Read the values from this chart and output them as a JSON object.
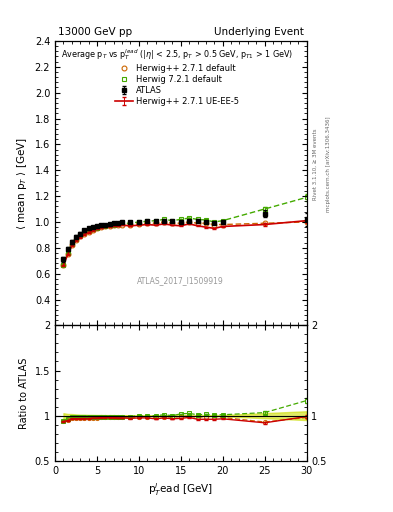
{
  "title_left": "13000 GeV pp",
  "title_right": "Underlying Event",
  "annotation": "ATLAS_2017_I1509919",
  "right_label_top": "Rivet 3.1.10, ≥ 3M events",
  "right_label_bottom": "mcplots.cern.ch [arXiv:1306.3436]",
  "ylabel_main": "⟨ mean p$_{T}$ ⟩ [GeV]",
  "ylabel_ratio": "Ratio to ATLAS",
  "xlabel": "p$_{T}^{l}$ead [GeV]",
  "xlim": [
    0,
    30
  ],
  "ylim_main": [
    0.2,
    2.4
  ],
  "ylim_ratio": [
    0.5,
    2.0
  ],
  "legend_title": "Average p$_{T}$ vs p$_{T}^{lead}$ (|$\\eta$| < 2.5, p$_{T}$ > 0.5 GeV, p$_{T1}$ > 1 GeV)",
  "atlas_x": [
    1.0,
    1.5,
    2.0,
    2.5,
    3.0,
    3.5,
    4.0,
    4.5,
    5.0,
    5.5,
    6.0,
    6.5,
    7.0,
    7.5,
    8.0,
    9.0,
    10.0,
    11.0,
    12.0,
    13.0,
    14.0,
    15.0,
    16.0,
    17.0,
    18.0,
    19.0,
    20.0,
    25.0,
    30.0
  ],
  "atlas_y": [
    0.71,
    0.79,
    0.845,
    0.885,
    0.91,
    0.935,
    0.95,
    0.96,
    0.97,
    0.975,
    0.98,
    0.985,
    0.99,
    0.995,
    1.0,
    1.0,
    1.0,
    1.005,
    1.01,
    1.01,
    1.01,
    1.0,
    1.005,
    1.01,
    1.0,
    0.99,
    1.0,
    1.065,
    1.02
  ],
  "atlas_yerr": [
    0.02,
    0.015,
    0.015,
    0.012,
    0.01,
    0.01,
    0.008,
    0.008,
    0.007,
    0.007,
    0.006,
    0.006,
    0.006,
    0.005,
    0.005,
    0.005,
    0.005,
    0.005,
    0.005,
    0.005,
    0.005,
    0.005,
    0.005,
    0.005,
    0.006,
    0.006,
    0.007,
    0.03,
    0.05
  ],
  "herwig271_x": [
    1.0,
    1.5,
    2.0,
    2.5,
    3.0,
    3.5,
    4.0,
    4.5,
    5.0,
    5.5,
    6.0,
    6.5,
    7.0,
    7.5,
    8.0,
    9.0,
    10.0,
    11.0,
    12.0,
    13.0,
    14.0,
    15.0,
    16.0,
    17.0,
    18.0,
    19.0,
    20.0,
    25.0,
    30.0
  ],
  "herwig271_y": [
    0.67,
    0.755,
    0.82,
    0.86,
    0.89,
    0.91,
    0.925,
    0.94,
    0.95,
    0.96,
    0.965,
    0.97,
    0.975,
    0.975,
    0.98,
    0.98,
    0.985,
    0.99,
    0.99,
    1.0,
    0.99,
    0.99,
    1.0,
    0.99,
    0.99,
    0.98,
    0.98,
    0.99,
    1.0
  ],
  "herwig271ueee5_x": [
    1.0,
    1.5,
    2.0,
    2.5,
    3.0,
    3.5,
    4.0,
    4.5,
    5.0,
    5.5,
    6.0,
    6.5,
    7.0,
    7.5,
    8.0,
    9.0,
    10.0,
    11.0,
    12.0,
    13.0,
    14.0,
    15.0,
    16.0,
    17.0,
    18.0,
    19.0,
    20.0,
    25.0,
    30.0
  ],
  "herwig271ueee5_y": [
    0.665,
    0.745,
    0.815,
    0.855,
    0.88,
    0.905,
    0.92,
    0.935,
    0.945,
    0.955,
    0.96,
    0.965,
    0.97,
    0.97,
    0.975,
    0.97,
    0.975,
    0.98,
    0.975,
    0.985,
    0.975,
    0.97,
    0.985,
    0.97,
    0.96,
    0.95,
    0.965,
    0.98,
    1.01
  ],
  "herwig271ueee5_yerr": [
    0.005,
    0.004,
    0.004,
    0.003,
    0.003,
    0.003,
    0.003,
    0.002,
    0.002,
    0.002,
    0.002,
    0.002,
    0.002,
    0.002,
    0.002,
    0.002,
    0.002,
    0.002,
    0.002,
    0.002,
    0.002,
    0.003,
    0.003,
    0.003,
    0.004,
    0.005,
    0.005,
    0.01,
    0.02
  ],
  "herwig721_x": [
    1.0,
    1.5,
    2.0,
    2.5,
    3.0,
    3.5,
    4.0,
    4.5,
    5.0,
    5.5,
    6.0,
    6.5,
    7.0,
    7.5,
    8.0,
    9.0,
    10.0,
    11.0,
    12.0,
    13.0,
    14.0,
    15.0,
    16.0,
    17.0,
    18.0,
    19.0,
    20.0,
    25.0,
    30.0
  ],
  "herwig721_y": [
    0.67,
    0.76,
    0.83,
    0.87,
    0.9,
    0.92,
    0.935,
    0.945,
    0.955,
    0.965,
    0.97,
    0.975,
    0.98,
    0.985,
    0.99,
    0.99,
    1.0,
    1.005,
    1.01,
    1.02,
    1.01,
    1.02,
    1.03,
    1.02,
    1.015,
    1.0,
    1.01,
    1.1,
    1.19
  ],
  "herwig721_yerr": [
    0.005,
    0.004,
    0.004,
    0.003,
    0.003,
    0.003,
    0.003,
    0.002,
    0.002,
    0.002,
    0.002,
    0.002,
    0.002,
    0.002,
    0.002,
    0.002,
    0.002,
    0.002,
    0.002,
    0.002,
    0.002,
    0.003,
    0.003,
    0.003,
    0.004,
    0.005,
    0.006,
    0.015,
    0.03
  ],
  "color_atlas": "#000000",
  "color_herwig271": "#cc6600",
  "color_herwig271ueee5": "#cc0000",
  "color_herwig721": "#44aa00",
  "ratio_herwig271_y": [
    0.944,
    0.956,
    0.97,
    0.972,
    0.978,
    0.973,
    0.974,
    0.979,
    0.979,
    0.985,
    0.985,
    0.985,
    0.985,
    0.98,
    0.98,
    0.98,
    0.985,
    0.985,
    0.98,
    0.99,
    0.98,
    0.99,
    0.995,
    0.98,
    0.99,
    0.99,
    0.98,
    0.93,
    0.98
  ],
  "ratio_herwig271ueee5_y": [
    0.937,
    0.943,
    0.965,
    0.966,
    0.967,
    0.968,
    0.968,
    0.974,
    0.974,
    0.98,
    0.98,
    0.98,
    0.98,
    0.975,
    0.975,
    0.97,
    0.975,
    0.975,
    0.965,
    0.975,
    0.965,
    0.97,
    0.98,
    0.96,
    0.96,
    0.96,
    0.965,
    0.921,
    0.99
  ],
  "ratio_herwig721_y": [
    0.944,
    0.962,
    0.982,
    0.983,
    0.989,
    0.984,
    0.984,
    0.984,
    0.984,
    0.99,
    0.99,
    0.99,
    0.99,
    0.99,
    0.99,
    0.99,
    1.0,
    1.0,
    1.0,
    1.01,
    1.0,
    1.02,
    1.025,
    1.01,
    1.015,
    1.01,
    1.01,
    1.034,
    1.167
  ]
}
